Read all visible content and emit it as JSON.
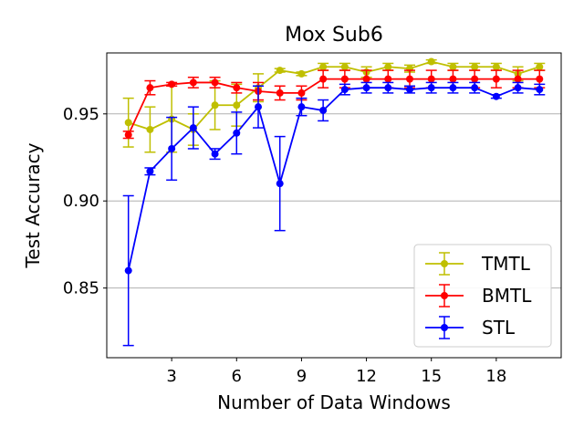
{
  "chart_data": {
    "type": "line",
    "title": "Mox Sub6",
    "xlabel": "Number of Data Windows",
    "ylabel": "Test Accuracy",
    "xlim": [
      0,
      21
    ],
    "ylim": [
      0.81,
      0.985
    ],
    "xticks": [
      3,
      6,
      9,
      12,
      15,
      18
    ],
    "xtick_labels": [
      "3",
      "6",
      "9",
      "12",
      "15",
      "18"
    ],
    "yticks": [
      0.85,
      0.9,
      0.95
    ],
    "ytick_labels": [
      "0.85",
      "0.90",
      "0.95"
    ],
    "grid": "y",
    "legend_position": "lower-right",
    "x": [
      1,
      2,
      3,
      4,
      5,
      6,
      7,
      8,
      9,
      10,
      11,
      12,
      13,
      14,
      15,
      16,
      17,
      18,
      19,
      20
    ],
    "series": [
      {
        "name": "TMTL",
        "color": "#bfbf00",
        "values": [
          0.945,
          0.941,
          0.947,
          0.941,
          0.955,
          0.955,
          0.965,
          0.975,
          0.973,
          0.977,
          0.977,
          0.974,
          0.977,
          0.976,
          0.98,
          0.977,
          0.977,
          0.977,
          0.973,
          0.977
        ],
        "errors": [
          0.014,
          0.013,
          0.019,
          0.009,
          0.014,
          0.012,
          0.008,
          0.001,
          0.001,
          0.002,
          0.002,
          0.003,
          0.002,
          0.002,
          0.001,
          0.002,
          0.002,
          0.002,
          0.004,
          0.002
        ]
      },
      {
        "name": "BMTL",
        "color": "#ff0000",
        "values": [
          0.938,
          0.965,
          0.967,
          0.968,
          0.968,
          0.965,
          0.963,
          0.962,
          0.962,
          0.97,
          0.97,
          0.97,
          0.97,
          0.97,
          0.97,
          0.97,
          0.97,
          0.97,
          0.97,
          0.97
        ],
        "errors": [
          0.002,
          0.004,
          0.001,
          0.003,
          0.003,
          0.003,
          0.005,
          0.004,
          0.004,
          0.005,
          0.005,
          0.005,
          0.005,
          0.005,
          0.005,
          0.005,
          0.005,
          0.005,
          0.005,
          0.005
        ]
      },
      {
        "name": "STL",
        "color": "#0000ff",
        "values": [
          0.86,
          0.917,
          0.93,
          0.942,
          0.927,
          0.939,
          0.954,
          0.91,
          0.954,
          0.952,
          0.964,
          0.965,
          0.965,
          0.964,
          0.965,
          0.965,
          0.965,
          0.96,
          0.965,
          0.964
        ],
        "errors": [
          0.043,
          0.002,
          0.018,
          0.012,
          0.003,
          0.012,
          0.012,
          0.027,
          0.005,
          0.006,
          0.003,
          0.003,
          0.003,
          0.002,
          0.003,
          0.003,
          0.003,
          0.001,
          0.003,
          0.003
        ]
      }
    ]
  }
}
